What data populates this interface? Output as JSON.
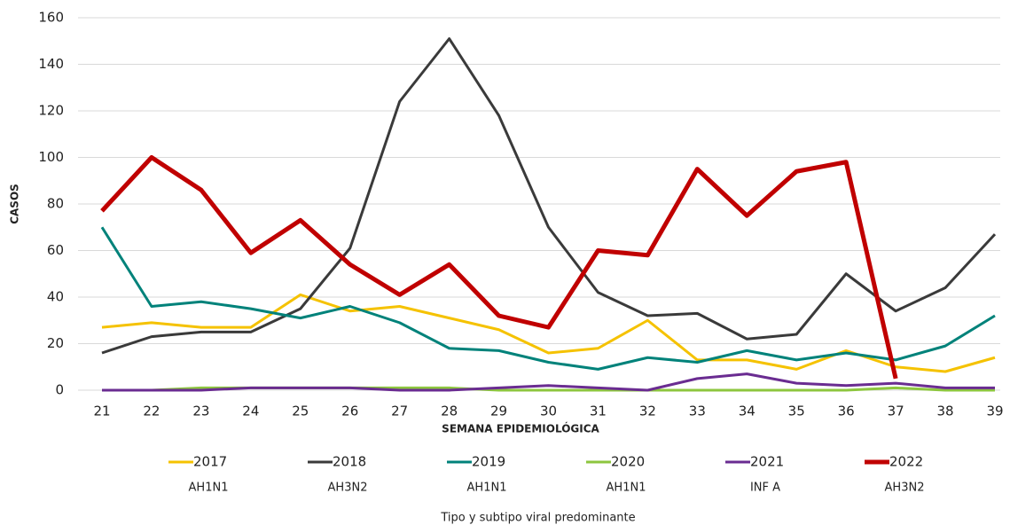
{
  "chart_data": {
    "type": "line",
    "y_label": "CASOS",
    "x_label": "SEMANA EPIDEMIOLÓGICA",
    "legend_title": "Tipo y subtipo viral predominante",
    "x": [
      21,
      22,
      23,
      24,
      25,
      26,
      27,
      28,
      29,
      30,
      31,
      32,
      33,
      34,
      35,
      36,
      37,
      38,
      39
    ],
    "xlim": [
      21,
      39
    ],
    "xticks": [
      21,
      22,
      23,
      24,
      25,
      26,
      27,
      28,
      29,
      30,
      31,
      32,
      33,
      34,
      35,
      36,
      37,
      38,
      39
    ],
    "ylim": [
      0,
      160
    ],
    "yticks": [
      0,
      20,
      40,
      60,
      80,
      100,
      120,
      140,
      160
    ],
    "grid": true,
    "legend": "bottom",
    "series": [
      {
        "name": "2017",
        "subtype": "AH1N1",
        "color": "#f5c200",
        "line_width": 3,
        "values": [
          27,
          29,
          27,
          27,
          41,
          34,
          36,
          31,
          26,
          16,
          18,
          30,
          13,
          13,
          9,
          17,
          10,
          8,
          14
        ]
      },
      {
        "name": "2018",
        "subtype": "AH3N2",
        "color": "#3a3a3a",
        "line_width": 3,
        "values": [
          16,
          23,
          25,
          25,
          35,
          61,
          124,
          151,
          118,
          70,
          42,
          32,
          33,
          22,
          24,
          50,
          34,
          44,
          67
        ]
      },
      {
        "name": "2019",
        "subtype": "AH1N1",
        "color": "#00827a",
        "line_width": 3,
        "values": [
          70,
          36,
          38,
          35,
          31,
          36,
          29,
          18,
          17,
          12,
          9,
          14,
          12,
          17,
          13,
          16,
          13,
          19,
          32
        ]
      },
      {
        "name": "2020",
        "subtype": "AH1N1",
        "color": "#8dc63f",
        "line_width": 3,
        "values": [
          0,
          0,
          1,
          1,
          1,
          1,
          1,
          1,
          0,
          0,
          0,
          0,
          0,
          0,
          0,
          0,
          1,
          0,
          0
        ]
      },
      {
        "name": "2021",
        "subtype": "INF A",
        "color": "#6a2c91",
        "line_width": 3,
        "values": [
          0,
          0,
          0,
          1,
          1,
          1,
          0,
          0,
          1,
          2,
          1,
          0,
          5,
          7,
          3,
          2,
          3,
          1,
          1
        ]
      },
      {
        "name": "2022",
        "subtype": "AH3N2",
        "color": "#c00000",
        "line_width": 5,
        "values": [
          77,
          100,
          86,
          59,
          73,
          54,
          41,
          54,
          32,
          27,
          60,
          58,
          95,
          75,
          94,
          98,
          5,
          null,
          null
        ]
      }
    ]
  }
}
